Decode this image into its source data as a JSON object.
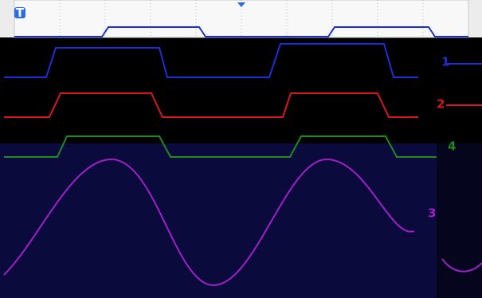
{
  "trigger_marker": "T",
  "channels": [
    {
      "label": "1"
    },
    {
      "label": "2"
    },
    {
      "label": "4"
    },
    {
      "label": "3"
    }
  ]
}
